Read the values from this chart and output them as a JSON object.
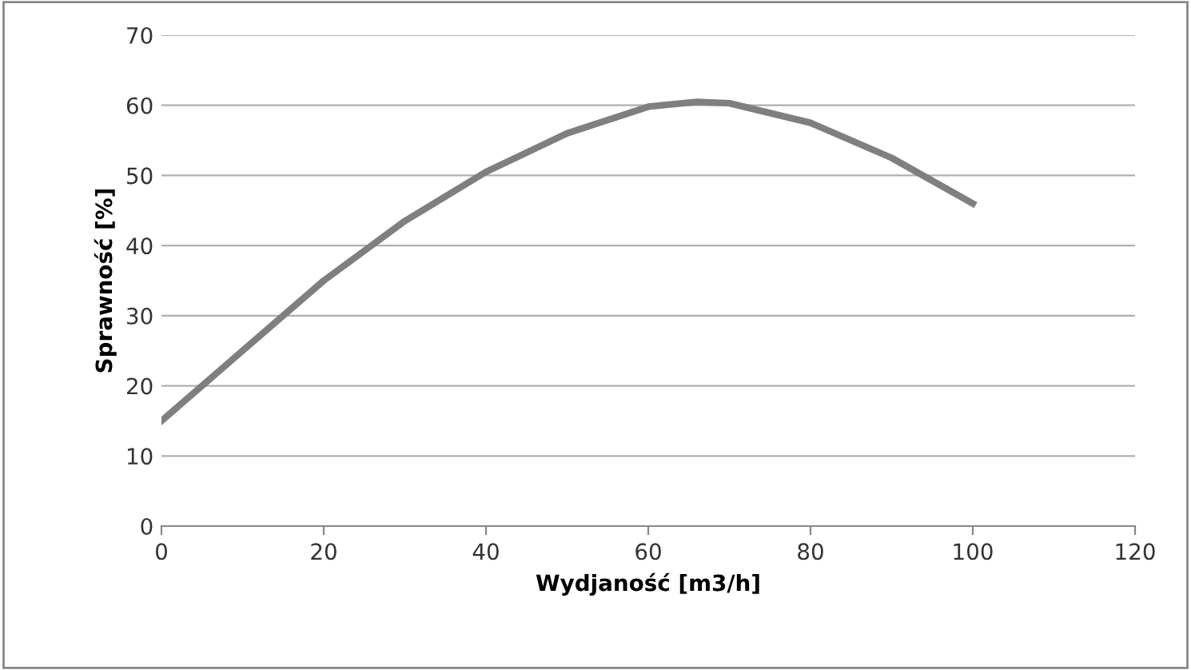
{
  "chart_data": {
    "type": "line",
    "xlabel": "Wydjaność [m3/h]",
    "ylabel": "Sprawność [%]",
    "x": [
      0,
      10,
      20,
      30,
      40,
      50,
      60,
      66,
      70,
      80,
      90,
      100
    ],
    "series": [
      {
        "color": "#7f7f7f",
        "values": [
          15,
          25,
          35,
          43.5,
          50.5,
          56,
          59.8,
          60.5,
          60.3,
          57.5,
          52.5,
          46
        ]
      }
    ],
    "xlim": [
      0,
      120
    ],
    "xticks": [
      0,
      20,
      40,
      60,
      80,
      100,
      120
    ],
    "ylim": [
      0,
      70
    ],
    "yticks": [
      0,
      10,
      20,
      30,
      40,
      50,
      60,
      70
    ],
    "grid": "y",
    "legend": false,
    "marker": "none",
    "line_style": "solid"
  }
}
